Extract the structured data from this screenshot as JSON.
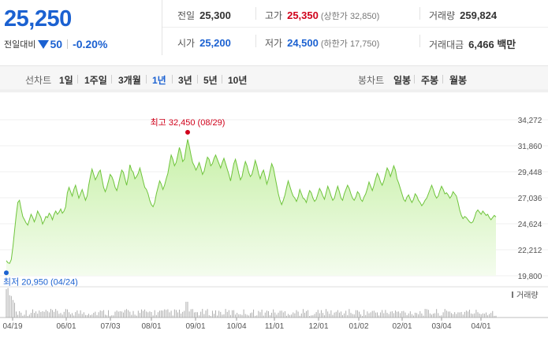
{
  "quote": {
    "price": "25,250",
    "change_label": "전일대비",
    "change_value": "50",
    "change_pct": "-0.20%",
    "prev_close_label": "전일",
    "prev_close": "25,300",
    "high_label": "고가",
    "high": "25,350",
    "upper_limit_label": "(상한가 32,850)",
    "volume_label": "거래량",
    "volume": "259,824",
    "open_label": "시가",
    "open": "25,200",
    "low_label": "저가",
    "low": "24,500",
    "lower_limit_label": "(하한가 17,750)",
    "amount_label": "거래대금",
    "amount": "6,466 백만"
  },
  "periods": {
    "line_label": "선차트",
    "items": [
      "1일",
      "1주일",
      "3개월",
      "1년",
      "3년",
      "5년",
      "10년"
    ],
    "active": "1년",
    "candle_label": "봉차트",
    "candle_items": [
      "일봉",
      "주봉",
      "월봉"
    ]
  },
  "colors": {
    "up": "#d0021b",
    "down": "#1b61d1",
    "line": "#6fc43c",
    "fill_top": "#c7f0a7",
    "fill_bottom": "#f4fcee",
    "volume": "#9a9a9a"
  },
  "chart_data": {
    "type": "area",
    "x_ticks": [
      "04/19",
      "06/01",
      "07/03",
      "08/01",
      "09/01",
      "10/04",
      "11/01",
      "12/01",
      "01/02",
      "02/01",
      "03/04",
      "04/01"
    ],
    "y_ticks": [
      "34,272",
      "31,860",
      "29,448",
      "27,036",
      "24,624",
      "22,212",
      "19,800"
    ],
    "ylim": [
      19800,
      34272
    ],
    "high_annotation": "최고 32,450 (08/29)",
    "low_annotation": "최저 20,950 (04/24)",
    "volume_label": "거래량",
    "series": [
      {
        "values": [
          21200,
          21000,
          20950,
          21300,
          22500,
          24000,
          25400,
          26600,
          26800,
          26000,
          25300,
          25000,
          24700,
          24500,
          25000,
          25500,
          25200,
          24800,
          25200,
          25800,
          25500,
          25200,
          24600,
          24900,
          25300,
          25200,
          25600,
          25400,
          25000,
          25500,
          25800,
          25500,
          25700,
          26000,
          25600,
          25800,
          26200,
          27500,
          28000,
          27600,
          27200,
          27800,
          28200,
          27600,
          27000,
          27400,
          27800,
          27300,
          26800,
          27200,
          28200,
          29000,
          29700,
          29200,
          28700,
          29000,
          29400,
          29600,
          28800,
          28000,
          27600,
          28000,
          28600,
          29200,
          29000,
          28600,
          28000,
          27700,
          28300,
          29000,
          29600,
          29400,
          28800,
          28200,
          29000,
          30100,
          29600,
          29400,
          28800,
          29000,
          29300,
          29800,
          29200,
          28600,
          28000,
          27800,
          27400,
          26800,
          26400,
          26200,
          26600,
          27400,
          28000,
          28600,
          28300,
          27800,
          28200,
          28800,
          29300,
          30200,
          31000,
          30600,
          30000,
          30300,
          31000,
          31700,
          31200,
          30400,
          30600,
          31600,
          32450,
          31800,
          31000,
          30300,
          30000,
          29600,
          29900,
          30300,
          29800,
          29200,
          29500,
          30200,
          30800,
          30600,
          30000,
          30200,
          30700,
          31000,
          30600,
          30200,
          29800,
          30300,
          30700,
          30200,
          29700,
          29200,
          28600,
          29400,
          30200,
          30600,
          30000,
          29300,
          28700,
          29000,
          29800,
          30400,
          30000,
          29400,
          29000,
          29200,
          29800,
          30500,
          30000,
          29300,
          28800,
          29300,
          29600,
          29000,
          28300,
          28800,
          29500,
          30200,
          29800,
          29000,
          28200,
          27400,
          26800,
          26400,
          26800,
          27300,
          28000,
          28600,
          28100,
          27600,
          27200,
          27000,
          26700,
          27100,
          27800,
          27400,
          27000,
          26900,
          26600,
          27200,
          27700,
          27500,
          27000,
          26700,
          26900,
          27400,
          27900,
          27600,
          27200,
          26900,
          27500,
          28100,
          27700,
          27200,
          26800,
          27000,
          27600,
          28100,
          27600,
          27000,
          26800,
          27400,
          27800,
          28200,
          27900,
          27400,
          27000,
          26800,
          27100,
          27600,
          27400,
          26900,
          26700,
          27100,
          27400,
          27900,
          28500,
          28100,
          27700,
          28200,
          28800,
          29300,
          29000,
          28500,
          28200,
          28600,
          29200,
          29800,
          29500,
          29000,
          29500,
          30000,
          29600,
          28800,
          28400,
          27900,
          27400,
          26900,
          26700,
          27100,
          27300,
          26900,
          26600,
          26900,
          27400,
          27200,
          26800,
          26600,
          26300,
          26500,
          26800,
          27000,
          27400,
          27800,
          28200,
          27800,
          27300,
          27000,
          27200,
          27700,
          28100,
          27800,
          27400,
          27500,
          27300,
          27000,
          27200,
          27600,
          27400,
          27200,
          26600,
          25900,
          25400,
          25100,
          25300,
          25200,
          25000,
          24800,
          24700,
          24800,
          25200,
          25700,
          25900,
          25700,
          25500,
          25800,
          25600,
          25400,
          25500,
          25200,
          25000,
          25200,
          25400,
          25250
        ]
      }
    ]
  }
}
